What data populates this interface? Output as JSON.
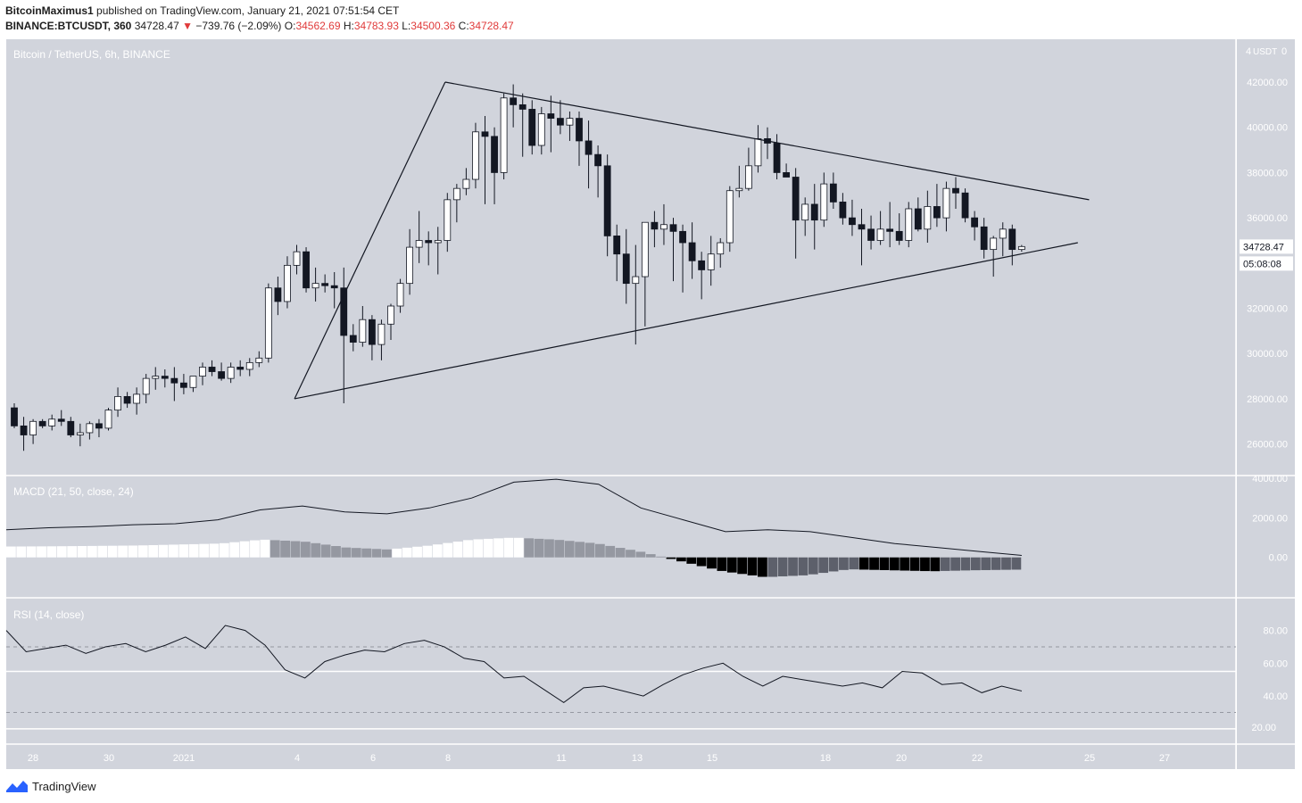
{
  "header": {
    "author": "BitcoinMaximus1",
    "published_text": "published on TradingView.com, January 21, 2021 07:51:54 CET",
    "symbol": "BINANCE:BTCUSDT, 360",
    "last": "34728.47",
    "change_arrow": "▼",
    "change": "−739.76 (−2.09%)",
    "o_label": "O:",
    "o_value": "34562.69",
    "h_label": "H:",
    "h_value": "34783.93",
    "l_label": "L:",
    "l_value": "34500.36",
    "c_label": "C:",
    "c_value": "34728.47"
  },
  "footer": {
    "brand": "TradingView",
    "icon": "tradingview-logo-icon"
  },
  "colors": {
    "background": "#d1d4dc",
    "bull_body": "#ffffff",
    "bear_body": "#131722",
    "line": "#131722"
  },
  "chart_data": [
    {
      "type": "candlestick",
      "title": "Bitcoin / TetherUS, 6h, BINANCE",
      "currency_label": "USDT",
      "ylim": [
        25000,
        43500
      ],
      "y_ticks": [
        "26000.00",
        "28000.00",
        "30000.00",
        "32000.00",
        "34000.00",
        "36000.00",
        "38000.00",
        "40000.00",
        "42000.00"
      ],
      "y_top_tick": "4",
      "x_tick_labels": [
        "28",
        "30",
        "2021",
        "4",
        "6",
        "8",
        "11",
        "13",
        "15",
        "18",
        "20",
        "22",
        "25",
        "27"
      ],
      "last_price_label": "34728.47",
      "countdown_label": "05:08:08",
      "candles_ohlc": [
        [
          27600,
          27800,
          26700,
          26800
        ],
        [
          26800,
          27200,
          25700,
          26400
        ],
        [
          26400,
          27100,
          26000,
          27000
        ],
        [
          27000,
          27100,
          26700,
          26800
        ],
        [
          26800,
          27300,
          26600,
          27100
        ],
        [
          27100,
          27500,
          26800,
          27000
        ],
        [
          27000,
          27200,
          26300,
          26400
        ],
        [
          26400,
          26900,
          25900,
          26500
        ],
        [
          26500,
          27000,
          26200,
          26900
        ],
        [
          26900,
          27100,
          26300,
          26700
        ],
        [
          26700,
          27600,
          26600,
          27500
        ],
        [
          27500,
          28500,
          27200,
          28100
        ],
        [
          28100,
          28300,
          27600,
          27800
        ],
        [
          27800,
          28500,
          27300,
          28200
        ],
        [
          28200,
          29100,
          27800,
          28900
        ],
        [
          28900,
          29400,
          28400,
          29000
        ],
        [
          29000,
          29300,
          28500,
          28900
        ],
        [
          28900,
          29400,
          27900,
          28700
        ],
        [
          28700,
          29100,
          28200,
          28500
        ],
        [
          28500,
          29000,
          28300,
          29000
        ],
        [
          29000,
          29600,
          28600,
          29400
        ],
        [
          29400,
          29700,
          29000,
          29200
        ],
        [
          29200,
          29600,
          28800,
          28900
        ],
        [
          28900,
          29600,
          28700,
          29400
        ],
        [
          29400,
          29700,
          29000,
          29300
        ],
        [
          29300,
          29800,
          29000,
          29600
        ],
        [
          29600,
          30100,
          29400,
          29800
        ],
        [
          29800,
          33100,
          29600,
          32900
        ],
        [
          32900,
          33400,
          31700,
          32300
        ],
        [
          32300,
          34300,
          32000,
          33900
        ],
        [
          33900,
          34800,
          33500,
          34500
        ],
        [
          34500,
          34700,
          32700,
          32900
        ],
        [
          32900,
          33800,
          32300,
          33100
        ],
        [
          33100,
          33500,
          32700,
          33000
        ],
        [
          33000,
          33600,
          32000,
          32900
        ],
        [
          32900,
          33800,
          27800,
          30800
        ],
        [
          30800,
          31300,
          30100,
          30500
        ],
        [
          30500,
          32100,
          30300,
          31500
        ],
        [
          31500,
          31700,
          29700,
          30400
        ],
        [
          30400,
          31500,
          29700,
          31300
        ],
        [
          31300,
          32200,
          30600,
          32100
        ],
        [
          32100,
          33300,
          31800,
          33100
        ],
        [
          33100,
          35500,
          32600,
          34700
        ],
        [
          34700,
          36300,
          34000,
          35000
        ],
        [
          35000,
          35400,
          33900,
          34900
        ],
        [
          34900,
          35600,
          33500,
          35000
        ],
        [
          35000,
          37100,
          34500,
          36800
        ],
        [
          36800,
          37500,
          35800,
          37300
        ],
        [
          37300,
          38200,
          37000,
          37700
        ],
        [
          37700,
          40200,
          37300,
          39800
        ],
        [
          39800,
          40500,
          36600,
          39600
        ],
        [
          39600,
          40000,
          36600,
          38000
        ],
        [
          38000,
          41500,
          37700,
          41300
        ],
        [
          41300,
          41900,
          40000,
          41000
        ],
        [
          41000,
          41500,
          38700,
          40800
        ],
        [
          40800,
          41200,
          38800,
          39200
        ],
        [
          39200,
          40900,
          38800,
          40600
        ],
        [
          40600,
          41400,
          38900,
          40400
        ],
        [
          40400,
          41200,
          39700,
          40100
        ],
        [
          40100,
          40700,
          39400,
          40400
        ],
        [
          40400,
          40700,
          38300,
          39400
        ],
        [
          39400,
          40300,
          37300,
          38800
        ],
        [
          38800,
          39200,
          36900,
          38300
        ],
        [
          38300,
          38800,
          34300,
          35200
        ],
        [
          35200,
          35700,
          33200,
          34400
        ],
        [
          34400,
          35500,
          32200,
          33100
        ],
        [
          33100,
          34800,
          30400,
          33400
        ],
        [
          33400,
          35600,
          31200,
          35800
        ],
        [
          35800,
          36300,
          34700,
          35500
        ],
        [
          35500,
          36600,
          34800,
          35700
        ],
        [
          35700,
          36000,
          33200,
          35400
        ],
        [
          35400,
          35700,
          32700,
          34900
        ],
        [
          34900,
          35800,
          33300,
          34100
        ],
        [
          34100,
          34500,
          32400,
          33700
        ],
        [
          33700,
          35200,
          33000,
          34400
        ],
        [
          34400,
          35100,
          33800,
          34900
        ],
        [
          34900,
          37400,
          34500,
          37200
        ],
        [
          37200,
          38300,
          36900,
          37300
        ],
        [
          37300,
          39100,
          37200,
          38300
        ],
        [
          38300,
          40100,
          38000,
          39500
        ],
        [
          39500,
          40000,
          38600,
          39300
        ],
        [
          39300,
          39700,
          37700,
          38000
        ],
        [
          38000,
          38400,
          37800,
          37800
        ],
        [
          37800,
          38200,
          34200,
          35900
        ],
        [
          35900,
          36900,
          35200,
          36600
        ],
        [
          36600,
          37500,
          34600,
          35900
        ],
        [
          35900,
          38000,
          35600,
          37500
        ],
        [
          37500,
          38000,
          36400,
          36700
        ],
        [
          36700,
          37100,
          35700,
          36000
        ],
        [
          36000,
          36800,
          35200,
          35700
        ],
        [
          35700,
          36400,
          33900,
          35500
        ],
        [
          35500,
          36100,
          34600,
          35000
        ],
        [
          35000,
          36300,
          34800,
          35500
        ],
        [
          35500,
          36700,
          34700,
          35400
        ],
        [
          35400,
          36200,
          34800,
          35000
        ],
        [
          35000,
          36700,
          34700,
          36400
        ],
        [
          36400,
          36900,
          35400,
          35500
        ],
        [
          35500,
          37200,
          34900,
          36500
        ],
        [
          36500,
          37500,
          35600,
          36000
        ],
        [
          36000,
          37600,
          35400,
          37300
        ],
        [
          37300,
          37800,
          36400,
          37100
        ],
        [
          37100,
          37300,
          35800,
          36000
        ],
        [
          36000,
          36300,
          35000,
          35600
        ],
        [
          35600,
          36000,
          34200,
          34600
        ],
        [
          34600,
          35200,
          33400,
          35100
        ],
        [
          35100,
          35800,
          34300,
          35500
        ],
        [
          35500,
          35700,
          33900,
          34600
        ],
        [
          34600,
          34800,
          34500,
          34730
        ]
      ],
      "annotations": {
        "upper_trendline": [
          [
            8.2,
            42000
          ],
          [
            25.3,
            36800
          ]
        ],
        "lower_trendline": [
          [
            4.2,
            28000
          ],
          [
            25,
            34900
          ]
        ],
        "triangle_start": [
          [
            4.2,
            28000
          ],
          [
            8.2,
            42000
          ]
        ]
      }
    },
    {
      "type": "macd",
      "title": "MACD (21, 50, close, 24)",
      "y_ticks": [
        "0.00",
        "2000.00",
        "4000.00"
      ],
      "ylim": [
        -1500,
        4000
      ],
      "macd_line": [
        1400,
        1500,
        1550,
        1650,
        1700,
        1900,
        2400,
        2600,
        2300,
        2200,
        2500,
        3000,
        3800,
        3950,
        3700,
        2500,
        1900,
        1300,
        1400,
        1300,
        1000,
        700,
        500,
        300,
        100
      ],
      "histogram": [
        550,
        560,
        580,
        600,
        650,
        700,
        900,
        800,
        500,
        400,
        600,
        900,
        1000,
        900,
        700,
        300,
        -200,
        -700,
        -1000,
        -900,
        -600,
        -650,
        -700,
        -650,
        -620
      ]
    },
    {
      "type": "rsi",
      "title": "RSI (14, close)",
      "y_ticks": [
        "40.00",
        "60.00",
        "80.00"
      ],
      "bottom_label": "20.00",
      "ylim": [
        15,
        95
      ],
      "bands": [
        30,
        70
      ],
      "midline": 55,
      "values": [
        80,
        67,
        69,
        71,
        66,
        70,
        72,
        67,
        71,
        76,
        69,
        83,
        80,
        71,
        56,
        51,
        61,
        65,
        68,
        67,
        72,
        74,
        70,
        63,
        61,
        51,
        52,
        44,
        36,
        45,
        46,
        43,
        40,
        47,
        53,
        57,
        60,
        52,
        46,
        52,
        50,
        48,
        46,
        48,
        45,
        55,
        54,
        47,
        48,
        42,
        46,
        43
      ]
    }
  ]
}
